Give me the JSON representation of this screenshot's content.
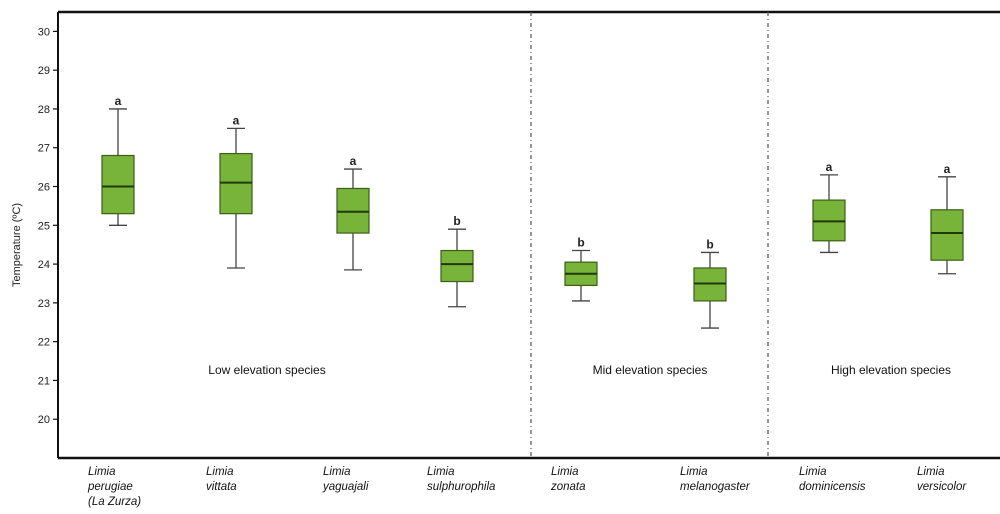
{
  "chart_data": {
    "type": "boxplot",
    "ylabel": "Temperature (ºC)",
    "ylim": [
      19,
      30.5
    ],
    "yticks": [
      20,
      21,
      22,
      23,
      24,
      25,
      26,
      27,
      28,
      29,
      30
    ],
    "grid": false,
    "categories": [
      {
        "lines": [
          "Limia",
          "perugiae",
          "(La Zurza)"
        ],
        "min": 25.0,
        "q1": 25.3,
        "median": 26.0,
        "q3": 26.8,
        "max": 28.0,
        "letter": "a"
      },
      {
        "lines": [
          "Limia",
          "vittata"
        ],
        "min": 23.9,
        "q1": 25.3,
        "median": 26.1,
        "q3": 26.85,
        "max": 27.5,
        "letter": "a"
      },
      {
        "lines": [
          "Limia",
          "yaguajali"
        ],
        "min": 23.85,
        "q1": 24.8,
        "median": 25.35,
        "q3": 25.95,
        "max": 26.45,
        "letter": "a"
      },
      {
        "lines": [
          "Limia",
          "sulphurophila"
        ],
        "min": 22.9,
        "q1": 23.55,
        "median": 24.0,
        "q3": 24.35,
        "max": 24.9,
        "letter": "b"
      },
      {
        "lines": [
          "Limia",
          "zonata"
        ],
        "min": 23.05,
        "q1": 23.45,
        "median": 23.75,
        "q3": 24.05,
        "max": 24.35,
        "letter": "b"
      },
      {
        "lines": [
          "Limia",
          "melanogaster"
        ],
        "min": 22.35,
        "q1": 23.05,
        "median": 23.5,
        "q3": 23.9,
        "max": 24.3,
        "letter": "b"
      },
      {
        "lines": [
          "Limia",
          "dominicensis"
        ],
        "min": 24.3,
        "q1": 24.6,
        "median": 25.1,
        "q3": 25.65,
        "max": 26.3,
        "letter": "a"
      },
      {
        "lines": [
          "Limia",
          "versicolor"
        ],
        "min": 23.75,
        "q1": 24.1,
        "median": 24.8,
        "q3": 25.4,
        "max": 26.25,
        "letter": "a"
      }
    ],
    "groups": [
      {
        "label": "Low elevation species",
        "from": 0,
        "to": 3
      },
      {
        "label": "Mid elevation species",
        "from": 4,
        "to": 5
      },
      {
        "label": "High elevation species",
        "from": 6,
        "to": 7
      }
    ],
    "colors": {
      "box_fill": "#78b33a",
      "box_stroke": "#3d5e18",
      "whisker": "#444444",
      "axis": "#111111",
      "divider": "#555555"
    }
  }
}
